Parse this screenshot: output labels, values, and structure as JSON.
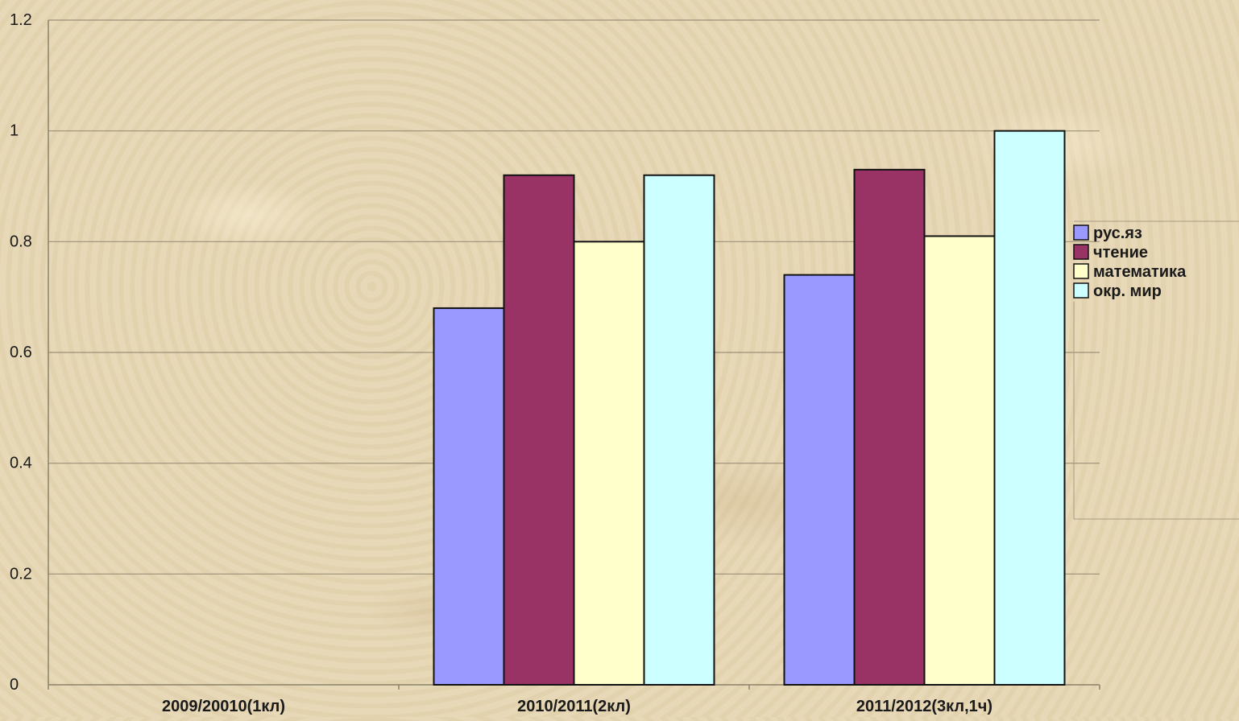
{
  "chart_data": {
    "type": "bar",
    "title": "",
    "xlabel": "",
    "ylabel": "",
    "ylim": [
      0,
      1.2
    ],
    "yticks": [
      "0",
      "0.2",
      "0.4",
      "0.6",
      "0.8",
      "1",
      "1.2"
    ],
    "categories": [
      "2009/20010(1кл)",
      "2010/2011(2кл)",
      "2011/2012(3кл,1ч)"
    ],
    "series": [
      {
        "name": "рус.яз",
        "color": "#9999ff",
        "values": [
          null,
          0.68,
          0.74
        ]
      },
      {
        "name": "чтение",
        "color": "#993366",
        "values": [
          null,
          0.92,
          0.93
        ]
      },
      {
        "name": "математика",
        "color": "#ffffcc",
        "values": [
          null,
          0.8,
          0.81
        ]
      },
      {
        "name": "окр. мир",
        "color": "#ccffff",
        "values": [
          null,
          0.92,
          1.0
        ]
      }
    ],
    "grid": true,
    "legend_position": "right"
  }
}
